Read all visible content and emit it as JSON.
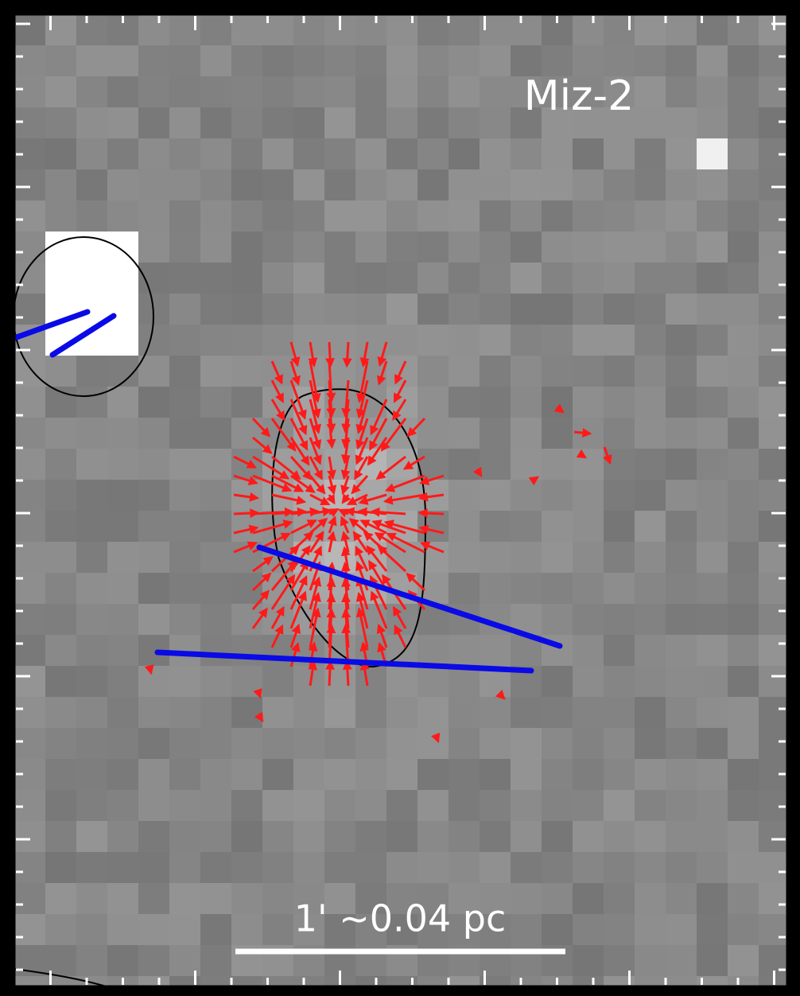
{
  "label": "Miz-2",
  "scale_bar": "1' ~0.04 pc"
}
